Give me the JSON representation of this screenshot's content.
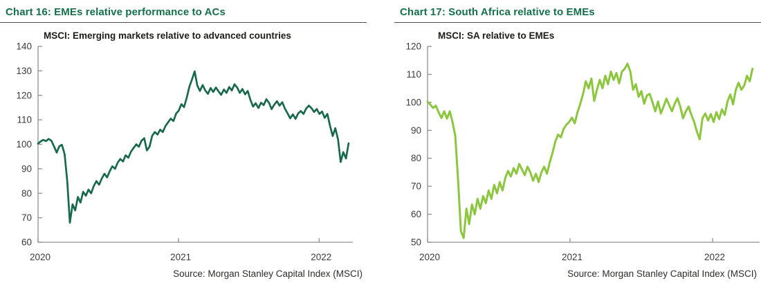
{
  "page": {
    "background": "#ffffff"
  },
  "chart_data": [
    {
      "type": "line",
      "heading": "Chart 16: EMEs relative performance to ACs",
      "title": "MSCI: Emerging markets relative to advanced countries",
      "source": "Source: Morgan Stanley Capital Index (MSCI)",
      "color": "#17694a",
      "xlabel": "",
      "ylabel": "",
      "x_start": 2020.0,
      "x_end": 2022.21,
      "x_axis_max": 2022.24,
      "ylim": [
        60,
        140
      ],
      "y_ticks": [
        140,
        130,
        120,
        110,
        100,
        90,
        80,
        70,
        60
      ],
      "x_ticks": [
        2020,
        2021,
        2022
      ],
      "x_tick_labels": [
        "2020",
        "2021",
        "2022"
      ],
      "grid": false,
      "legend": false,
      "values": [
        100.3,
        101.2,
        101.8,
        101.3,
        102.2,
        101.5,
        99.2,
        96.6,
        99.2,
        99.8,
        96.0,
        85.0,
        68.0,
        75.5,
        73.0,
        78.5,
        76.2,
        80.6,
        79.0,
        81.5,
        80.0,
        83.0,
        85.0,
        83.5,
        86.0,
        88.0,
        86.5,
        89.0,
        91.0,
        90.0,
        92.5,
        94.0,
        93.0,
        95.5,
        94.5,
        97.0,
        98.5,
        100.0,
        99.0,
        101.5,
        102.5,
        97.5,
        99.0,
        103.5,
        105.0,
        104.0,
        106.0,
        105.0,
        107.5,
        109.0,
        110.5,
        109.5,
        112.5,
        113.8,
        116.4,
        115.2,
        119.0,
        123.5,
        126.5,
        129.8,
        124.0,
        121.8,
        124.2,
        122.0,
        120.6,
        123.0,
        121.4,
        123.2,
        121.6,
        120.2,
        122.4,
        121.0,
        123.4,
        122.0,
        124.5,
        123.2,
        121.0,
        122.6,
        120.4,
        121.8,
        118.2,
        115.4,
        116.8,
        114.8,
        117.0,
        116.0,
        118.4,
        117.0,
        114.4,
        116.2,
        117.6,
        115.8,
        117.2,
        114.6,
        112.6,
        110.6,
        112.2,
        110.4,
        112.6,
        113.6,
        112.4,
        114.6,
        115.8,
        114.8,
        113.2,
        114.4,
        112.4,
        113.4,
        110.8,
        112.4,
        107.6,
        103.4,
        106.6,
        102.0,
        92.8,
        96.8,
        94.2,
        100.4
      ]
    },
    {
      "type": "line",
      "heading": "Chart 17: South Africa relative to EMEs",
      "title": "MSCI: SA relative to EMEs",
      "source": "Source: Morgan Stanley Capital Index (MSCI)",
      "color": "#8cc63e",
      "xlabel": "",
      "ylabel": "",
      "x_start": 2020.0,
      "x_end": 2022.28,
      "x_axis_max": 2022.33,
      "ylim": [
        50,
        120
      ],
      "y_ticks": [
        120,
        110,
        100,
        90,
        80,
        70,
        60,
        50
      ],
      "x_ticks": [
        2020,
        2021,
        2022
      ],
      "x_tick_labels": [
        "2020",
        "2021",
        "2022"
      ],
      "grid": false,
      "legend": false,
      "values": [
        100.2,
        99.2,
        98.0,
        98.8,
        96.4,
        94.4,
        96.8,
        94.2,
        96.8,
        93.0,
        88.0,
        72.0,
        54.0,
        51.5,
        62.0,
        56.5,
        63.5,
        60.0,
        65.5,
        62.0,
        66.5,
        64.0,
        68.5,
        65.5,
        70.5,
        67.5,
        71.5,
        68.5,
        73.0,
        75.5,
        73.5,
        76.5,
        74.5,
        78.0,
        76.0,
        74.0,
        77.0,
        75.0,
        72.0,
        74.5,
        71.5,
        75.0,
        77.0,
        74.5,
        78.5,
        82.0,
        86.0,
        88.5,
        87.5,
        90.5,
        92.0,
        93.0,
        94.5,
        92.5,
        96.5,
        99.5,
        103.0,
        107.5,
        105.0,
        108.5,
        100.5,
        104.5,
        108.0,
        105.0,
        109.5,
        106.5,
        111.0,
        108.0,
        110.5,
        106.8,
        111.0,
        112.0,
        113.8,
        111.0,
        104.5,
        106.5,
        102.0,
        104.0,
        99.5,
        102.5,
        103.0,
        100.0,
        96.8,
        100.3,
        96.0,
        98.5,
        101.3,
        99.0,
        96.8,
        99.5,
        101.5,
        98.5,
        94.3,
        96.8,
        98.5,
        95.5,
        93.0,
        89.5,
        86.8,
        94.3,
        96.0,
        93.5,
        95.8,
        93.0,
        96.5,
        94.0,
        97.5,
        95.5,
        100.3,
        102.8,
        99.3,
        104.5,
        107.0,
        104.5,
        106.0,
        109.5,
        107.5,
        112.0
      ]
    }
  ]
}
